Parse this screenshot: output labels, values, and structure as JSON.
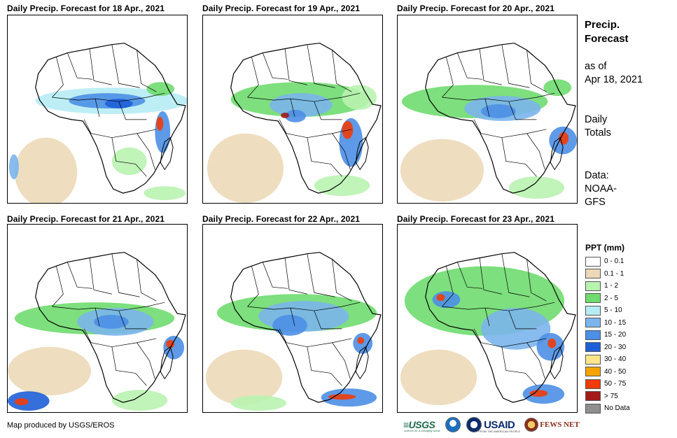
{
  "panels": [
    {
      "title": "Daily Precip. Forecast for 18 Apr., 2021"
    },
    {
      "title": "Daily Precip. Forecast for 19 Apr., 2021"
    },
    {
      "title": "Daily Precip. Forecast for 20 Apr., 2021"
    },
    {
      "title": "Daily Precip. Forecast for 21 Apr., 2021"
    },
    {
      "title": "Daily Precip. Forecast for 22 Apr., 2021"
    },
    {
      "title": "Daily Precip. Forecast for 23 Apr., 2021"
    }
  ],
  "sidebar": {
    "title_line1": "Precip.",
    "title_line2": "Forecast",
    "asof_line1": "as of",
    "asof_line2": "Apr 18, 2021",
    "daily_line1": "Daily",
    "daily_line2": "Totals",
    "data_line1": "Data:",
    "data_line2": "NOAA-",
    "data_line3": "GFS"
  },
  "legend": {
    "title": "PPT (mm)",
    "items": [
      {
        "label": "0 - 0.1",
        "color": "#ffffff"
      },
      {
        "label": "0.1 - 1",
        "color": "#ecd9b8"
      },
      {
        "label": "1 - 2",
        "color": "#b9f3b0"
      },
      {
        "label": "2 - 5",
        "color": "#6fdc6f"
      },
      {
        "label": "5 - 10",
        "color": "#b6ecf4"
      },
      {
        "label": "10 - 15",
        "color": "#7bb5ec"
      },
      {
        "label": "15 - 20",
        "color": "#4c8fe6"
      },
      {
        "label": "20 - 30",
        "color": "#1f5fd7"
      },
      {
        "label": "30 - 40",
        "color": "#fde68a"
      },
      {
        "label": "40 - 50",
        "color": "#f5a300"
      },
      {
        "label": "50 - 75",
        "color": "#f03c0a"
      },
      {
        "label": "> 75",
        "color": "#a11b1b"
      },
      {
        "label": "No Data",
        "color": "#8f8f8f"
      }
    ]
  },
  "footer": {
    "credit": "Map produced by USGS/EROS",
    "usgs_logo": "≡USGS",
    "usgs_tagline": "science for a changing world",
    "usaid_logo": "USAID",
    "usaid_tagline": "FROM THE AMERICAN PEOPLE",
    "fews_logo": "FEWS NET"
  },
  "icons": {
    "noaa": "noaa-seal-icon",
    "usaid_seal": "usaid-seal-icon",
    "fews": "fews-net-icon"
  }
}
